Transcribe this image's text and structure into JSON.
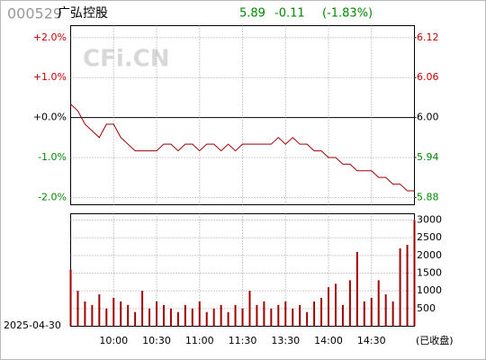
{
  "header": {
    "code": "000529",
    "name": "广弘控股",
    "price": 5.89,
    "change": -0.11,
    "change_pct": "(-1.83%)"
  },
  "watermark": "CFi.CN",
  "date": "2025-04-30",
  "status": "(已收盘)",
  "chart_data": [
    {
      "type": "line",
      "color": "#a00000",
      "values": [
        6.02,
        6.01,
        5.99,
        5.98,
        5.97,
        5.99,
        5.99,
        5.97,
        5.96,
        5.95,
        5.95,
        5.95,
        5.95,
        5.96,
        5.96,
        5.95,
        5.96,
        5.96,
        5.95,
        5.96,
        5.96,
        5.95,
        5.96,
        5.95,
        5.96,
        5.96,
        5.96,
        5.96,
        5.96,
        5.97,
        5.96,
        5.97,
        5.96,
        5.96,
        5.95,
        5.95,
        5.94,
        5.94,
        5.93,
        5.93,
        5.92,
        5.92,
        5.92,
        5.91,
        5.91,
        5.9,
        5.9,
        5.89,
        5.89
      ],
      "ylim": [
        5.869,
        6.138
      ],
      "yticks": [
        {
          "value": 6.12,
          "label": "6.12"
        },
        {
          "value": 6.06,
          "label": "6.06"
        },
        {
          "value": 6,
          "label": "6.00"
        },
        {
          "value": 5.94,
          "label": "5.94"
        },
        {
          "value": 5.88,
          "label": "5.88"
        }
      ],
      "y2lim": [
        -2.18,
        2.3
      ],
      "y2ticks": [
        {
          "value": 2,
          "label": "+2.0%"
        },
        {
          "value": 1,
          "label": "+1.0%"
        },
        {
          "value": 0,
          "label": "+0.0%"
        },
        {
          "value": -1,
          "label": "-1.0%"
        },
        {
          "value": -2,
          "label": "-2.0%"
        }
      ],
      "grid": true
    },
    {
      "type": "bar",
      "color": "#a00000",
      "categories": [
        null,
        null,
        null,
        null,
        null,
        null,
        "10:00",
        null,
        null,
        null,
        null,
        null,
        "10:30",
        null,
        null,
        null,
        null,
        null,
        "11:00",
        null,
        null,
        null,
        null,
        null,
        "11:30",
        null,
        null,
        null,
        null,
        null,
        "13:30",
        null,
        null,
        null,
        null,
        null,
        "14:00",
        null,
        null,
        null,
        null,
        null,
        "14:30",
        null,
        null,
        null,
        null,
        null,
        null
      ],
      "values": [
        1600,
        1000,
        700,
        600,
        900,
        500,
        800,
        700,
        600,
        400,
        1000,
        500,
        700,
        600,
        500,
        400,
        600,
        500,
        700,
        400,
        500,
        600,
        400,
        600,
        500,
        1000,
        600,
        700,
        500,
        600,
        700,
        500,
        600,
        400,
        700,
        800,
        1100,
        1200,
        600,
        1300,
        2100,
        700,
        800,
        1300,
        900,
        700,
        2200,
        2300,
        3000
      ],
      "ylim": [
        0,
        3178
      ],
      "yticks": [
        500,
        1000,
        1500,
        2000,
        2500,
        3000
      ],
      "grid": true
    }
  ]
}
